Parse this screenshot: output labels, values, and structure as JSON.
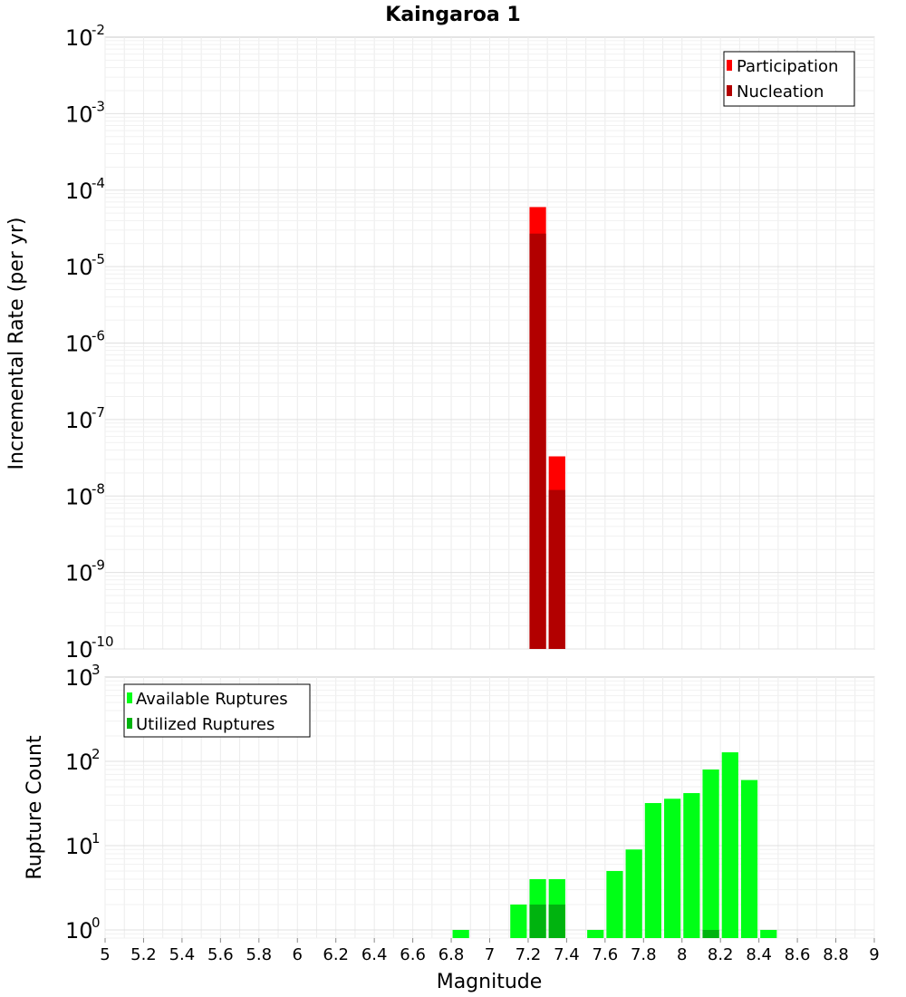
{
  "chart_data": [
    {
      "type": "bar",
      "title": "Kaingaroa 1",
      "xlabel": "",
      "ylabel": "Incremental Rate (per yr)",
      "yscale": "log",
      "xlim": [
        5,
        9
      ],
      "ylim": [
        1e-10,
        0.01
      ],
      "y_ticks": [
        {
          "base": "10",
          "exp": "-10"
        },
        {
          "base": "10",
          "exp": "-9"
        },
        {
          "base": "10",
          "exp": "-8"
        },
        {
          "base": "10",
          "exp": "-7"
        },
        {
          "base": "10",
          "exp": "-6"
        },
        {
          "base": "10",
          "exp": "-5"
        },
        {
          "base": "10",
          "exp": "-4"
        },
        {
          "base": "10",
          "exp": "-3"
        },
        {
          "base": "10",
          "exp": "-2"
        }
      ],
      "bin_width": 0.1,
      "legend_position": "top-right",
      "grid": true,
      "series": [
        {
          "name": "Participation",
          "color": "#ff0000",
          "points": [
            {
              "x": 7.25,
              "y": 6e-05
            },
            {
              "x": 7.35,
              "y": 3.3e-08
            }
          ]
        },
        {
          "name": "Nucleation",
          "color": "#b20000",
          "points": [
            {
              "x": 7.25,
              "y": 2.7e-05
            },
            {
              "x": 7.35,
              "y": 1.2e-08
            }
          ]
        }
      ]
    },
    {
      "type": "bar",
      "title": "",
      "xlabel": "Magnitude",
      "ylabel": "Rupture Count",
      "yscale": "log",
      "xlim": [
        5,
        9
      ],
      "ylim": [
        0.8,
        1000
      ],
      "x_ticks": [
        "5",
        "5.2",
        "5.4",
        "5.6",
        "5.8",
        "6",
        "6.2",
        "6.4",
        "6.6",
        "6.8",
        "7",
        "7.2",
        "7.4",
        "7.6",
        "7.8",
        "8",
        "8.2",
        "8.4",
        "8.6",
        "8.8",
        "9"
      ],
      "y_ticks": [
        {
          "base": "10",
          "exp": "0"
        },
        {
          "base": "10",
          "exp": "1"
        },
        {
          "base": "10",
          "exp": "2"
        },
        {
          "base": "10",
          "exp": "3"
        }
      ],
      "bin_width": 0.1,
      "legend_position": "top-left",
      "grid": true,
      "series": [
        {
          "name": "Available Ruptures",
          "color": "#00ff16",
          "points": [
            {
              "x": 6.85,
              "y": 1
            },
            {
              "x": 7.15,
              "y": 2
            },
            {
              "x": 7.25,
              "y": 4
            },
            {
              "x": 7.35,
              "y": 4
            },
            {
              "x": 7.55,
              "y": 1
            },
            {
              "x": 7.65,
              "y": 5
            },
            {
              "x": 7.75,
              "y": 9
            },
            {
              "x": 7.85,
              "y": 32
            },
            {
              "x": 7.95,
              "y": 36
            },
            {
              "x": 8.05,
              "y": 42
            },
            {
              "x": 8.15,
              "y": 80
            },
            {
              "x": 8.25,
              "y": 128
            },
            {
              "x": 8.35,
              "y": 60
            },
            {
              "x": 8.45,
              "y": 1
            }
          ]
        },
        {
          "name": "Utilized Ruptures",
          "color": "#00b30f",
          "points": [
            {
              "x": 7.25,
              "y": 2
            },
            {
              "x": 7.35,
              "y": 2
            },
            {
              "x": 8.15,
              "y": 1
            }
          ]
        }
      ]
    }
  ]
}
